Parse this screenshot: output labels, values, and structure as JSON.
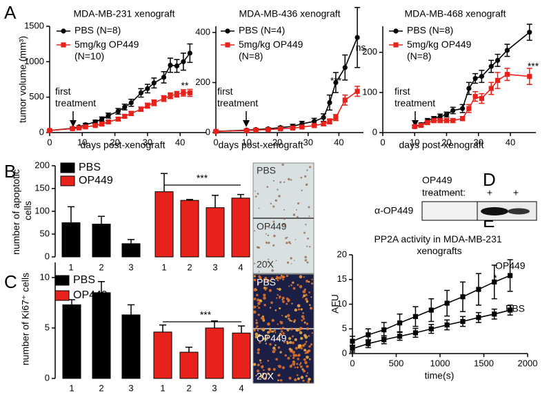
{
  "panel_labels": [
    "A",
    "B",
    "C",
    "D",
    "E"
  ],
  "chart_data": [
    {
      "type": "line",
      "title": "MDA-MB-231 xenograft",
      "y_label": "tumor volume (mm³)",
      "x_label": "days post-xenograft",
      "treatment_label": "first treatment",
      "legend": "upper left",
      "x": [
        0,
        7,
        9,
        11,
        14,
        16,
        18,
        21,
        23,
        25,
        28,
        30,
        32,
        35,
        37,
        39,
        41,
        43
      ],
      "series": [
        {
          "name": "PBS (N=8)",
          "color": "#000000",
          "marker": "circle",
          "values": [
            30,
            60,
            80,
            110,
            150,
            190,
            240,
            300,
            360,
            420,
            560,
            620,
            700,
            780,
            950,
            940,
            1000,
            1120
          ],
          "errors": [
            10,
            15,
            15,
            20,
            25,
            30,
            35,
            40,
            40,
            50,
            60,
            60,
            70,
            80,
            100,
            90,
            120,
            130
          ]
        },
        {
          "name": "5mg/kg OP449 (N=10)",
          "color": "#e8211a",
          "marker": "square",
          "values": [
            30,
            55,
            65,
            80,
            100,
            120,
            150,
            190,
            230,
            270,
            330,
            380,
            420,
            480,
            520,
            540,
            560,
            560
          ],
          "errors": [
            10,
            10,
            10,
            15,
            15,
            20,
            20,
            25,
            25,
            30,
            30,
            35,
            40,
            40,
            40,
            40,
            45,
            50
          ]
        }
      ],
      "annotations": [
        "**"
      ],
      "xlim": [
        0,
        48
      ],
      "ylim": [
        0,
        1500
      ],
      "xticks": [
        0,
        10,
        20,
        30,
        40
      ],
      "yticks": [
        0,
        500,
        1000,
        1500
      ]
    },
    {
      "type": "line",
      "title": "MDA-MB-436 xenograft",
      "x_label": "days post-xenograft",
      "treatment_label": "first treatment",
      "legend": "upper left",
      "x": [
        0,
        10,
        13,
        17,
        21,
        25,
        28,
        32,
        35,
        37,
        39,
        42,
        46
      ],
      "series": [
        {
          "name": "PBS (N=4)",
          "color": "#000000",
          "marker": "circle",
          "values": [
            5,
            10,
            12,
            15,
            20,
            25,
            35,
            45,
            60,
            120,
            200,
            260,
            380
          ],
          "errors": [
            3,
            4,
            4,
            5,
            5,
            8,
            10,
            12,
            15,
            30,
            40,
            50,
            120
          ]
        },
        {
          "name": "5mg/kg OP449 (N=8)",
          "color": "#e8211a",
          "marker": "square",
          "values": [
            5,
            8,
            10,
            12,
            15,
            18,
            22,
            28,
            35,
            45,
            60,
            130,
            165
          ],
          "errors": [
            3,
            3,
            3,
            4,
            4,
            5,
            5,
            6,
            8,
            10,
            12,
            20,
            20
          ]
        }
      ],
      "annotations": [
        "***",
        "ns"
      ],
      "xlim": [
        0,
        48
      ],
      "ylim": [
        0,
        425
      ],
      "xticks": [
        0,
        10,
        20,
        30,
        40
      ],
      "yticks": [
        0,
        200,
        400
      ]
    },
    {
      "type": "line",
      "title": "MDA-MB-468 xenograft",
      "x_label": "days post-xenograft",
      "treatment_label": "first treatment",
      "legend": "upper left",
      "x": [
        10,
        12,
        14,
        16,
        18,
        20,
        22,
        25,
        27,
        29,
        31,
        34,
        36,
        39,
        46
      ],
      "series": [
        {
          "name": "PBS (N=8)",
          "color": "#000000",
          "marker": "circle",
          "values": [
            15,
            20,
            30,
            35,
            40,
            45,
            55,
            60,
            110,
            135,
            140,
            165,
            180,
            205,
            250
          ],
          "errors": [
            3,
            4,
            5,
            5,
            6,
            6,
            8,
            10,
            15,
            12,
            15,
            15,
            15,
            15,
            20
          ]
        },
        {
          "name": "5mg/kg OP449 (N=8)",
          "color": "#e8211a",
          "marker": "square",
          "values": [
            15,
            18,
            25,
            30,
            30,
            30,
            30,
            35,
            60,
            90,
            85,
            110,
            130,
            145,
            140
          ],
          "errors": [
            3,
            4,
            5,
            5,
            5,
            5,
            5,
            5,
            10,
            12,
            12,
            15,
            20,
            15,
            20
          ]
        }
      ],
      "annotations": [
        "***"
      ],
      "xlim": [
        0,
        48
      ],
      "ylim": [
        0,
        265
      ],
      "xticks": [
        0,
        10,
        20,
        30,
        40
      ],
      "yticks": [
        0,
        100,
        200
      ]
    },
    {
      "type": "bar",
      "y_label": "number of apoptotic cells",
      "legend": "upper left",
      "categories": [
        "1",
        "2",
        "3",
        "1",
        "2",
        "3",
        "4"
      ],
      "series": [
        {
          "name": "PBS",
          "color": "#000000",
          "values": [
            75,
            72,
            29,
            null,
            null,
            null,
            null
          ],
          "errors": [
            35,
            17,
            9,
            null,
            null,
            null,
            null
          ]
        },
        {
          "name": "OP449",
          "color": "#e8211a",
          "values": [
            null,
            null,
            null,
            143,
            124,
            108,
            129
          ],
          "errors": [
            null,
            null,
            null,
            40,
            2,
            27,
            8
          ]
        }
      ],
      "annotations": [
        "***"
      ],
      "ylim": [
        0,
        200
      ],
      "yticks": [
        0,
        50,
        100,
        150,
        200
      ]
    },
    {
      "type": "bar",
      "y_label": "number of Ki67⁺ cells",
      "legend": "upper left",
      "categories": [
        "1",
        "2",
        "3",
        "1",
        "2",
        "3",
        "4"
      ],
      "series": [
        {
          "name": "PBS",
          "color": "#000000",
          "values": [
            7.3,
            8.5,
            6.3,
            null,
            null,
            null,
            null
          ],
          "errors": [
            0.5,
            1.1,
            1.0,
            null,
            null,
            null,
            null
          ]
        },
        {
          "name": "OP449",
          "color": "#e8211a",
          "values": [
            null,
            null,
            null,
            4.6,
            2.6,
            5.0,
            4.5
          ],
          "errors": [
            null,
            null,
            null,
            0.7,
            0.5,
            0.7,
            0.7
          ]
        }
      ],
      "annotations": [
        "***"
      ],
      "ylim": [
        0,
        11.5
      ],
      "yticks": [
        0,
        5,
        10
      ]
    },
    {
      "type": "line",
      "title": "PP2A activity in MDA-MB-231 xenografts",
      "x_label": "time(s)",
      "y_label": "AFU",
      "legend": "end",
      "x": [
        0,
        180,
        360,
        540,
        720,
        900,
        1080,
        1260,
        1440,
        1620,
        1800
      ],
      "series": [
        {
          "name": "OP449",
          "color": "#000000",
          "marker": "square",
          "values": [
            2.5,
            3.8,
            4.8,
            6.2,
            7.5,
            8.8,
            10.2,
            11.5,
            13,
            14.5,
            15.8
          ],
          "errors": [
            1,
            1.2,
            1.5,
            1.8,
            2,
            2.3,
            2.6,
            3,
            3.2,
            3.4,
            3.2
          ]
        },
        {
          "name": "PBS",
          "color": "#000000",
          "marker": "square",
          "values": [
            1,
            2,
            2.8,
            3.5,
            4.2,
            5,
            5.8,
            6.5,
            7.3,
            8,
            8.8
          ],
          "errors": [
            0.7,
            0.8,
            0.8,
            0.8,
            0.9,
            0.9,
            1,
            1,
            1,
            1,
            1
          ]
        }
      ],
      "annotations": [
        "*"
      ],
      "xlim": [
        0,
        2000
      ],
      "ylim": [
        0,
        20
      ],
      "xticks": [
        0,
        500,
        1000,
        1500,
        2000
      ],
      "yticks": [
        0,
        5,
        10,
        15,
        20
      ]
    }
  ],
  "micrographs": [
    {
      "labels": [
        "PBS",
        "OP449",
        "20X"
      ]
    },
    {
      "labels": [
        "PBS",
        "OP449",
        "20X"
      ]
    }
  ],
  "blot": {
    "treatment_label": [
      "OP449",
      "treatment:"
    ],
    "lanes": [
      "-",
      "-",
      "+",
      "+"
    ],
    "antibody": "α-OP449"
  }
}
